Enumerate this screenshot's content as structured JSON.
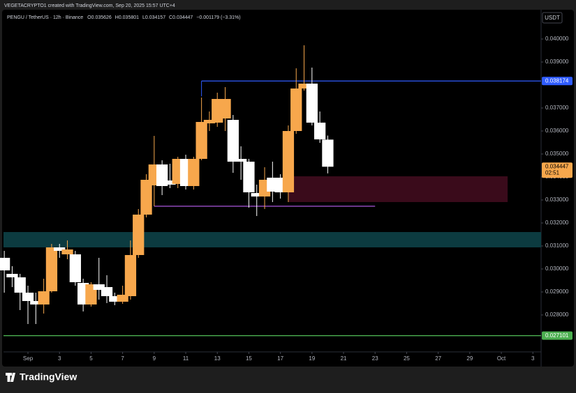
{
  "header": "VEGETACRYPTO1 created with TradingView.com, Sep 20, 2025 15:57 UTC+4",
  "footer": "TradingView",
  "chart_data": {
    "type": "candlestick",
    "symbol": "PENGU / TetherUS · 12h · Binance",
    "ohlc_letters": [
      "O",
      "H",
      "L",
      "C"
    ],
    "change": "−0.001179 (−3.31%)",
    "currency": "USDT",
    "countdown": "02:51",
    "x": [
      -0.5,
      0,
      0.5,
      1,
      1.5,
      2,
      2.5,
      3,
      3.5,
      4,
      4.5,
      5,
      5.5,
      6,
      6.5,
      7,
      7.5,
      8,
      8.5,
      9,
      9.5,
      10,
      10.5,
      11,
      11.5,
      12,
      12.5,
      13,
      13.5,
      14,
      14.5,
      15,
      15.5,
      16,
      16.5,
      17,
      17.5,
      18,
      18.5,
      19,
      19.5,
      20
    ],
    "open": [
      0.030485,
      0.029788,
      0.029636,
      0.02897,
      0.028606,
      0.028455,
      0.02903,
      0.030939,
      0.030636,
      0.030636,
      0.029394,
      0.028455,
      0.029333,
      0.029212,
      0.028818,
      0.028576,
      0.028818,
      0.030606,
      0.032364,
      0.033636,
      0.034545,
      0.033848,
      0.033697,
      0.034788,
      0.033606,
      0.034788,
      0.036333,
      0.036364,
      0.036545,
      0.036485,
      0.034788,
      0.034667,
      0.033303,
      0.033152,
      0.03397,
      0.03397,
      0.033333,
      0.036,
      0.037848,
      0.038061,
      0.036364,
      0.035626
    ],
    "high": [
      0.030788,
      0.030121,
      0.029788,
      0.029273,
      0.02897,
      0.029576,
      0.031091,
      0.031091,
      0.031242,
      0.030788,
      0.029576,
      0.029424,
      0.030485,
      0.029727,
      0.02897,
      0.029273,
      0.031242,
      0.032606,
      0.034121,
      0.035788,
      0.034727,
      0.034576,
      0.034879,
      0.03497,
      0.034879,
      0.037455,
      0.036848,
      0.037667,
      0.037909,
      0.036697,
      0.035333,
      0.034788,
      0.033667,
      0.034424,
      0.034667,
      0.034121,
      0.036242,
      0.038727,
      0.039727,
      0.038758,
      0.036848,
      0.035801
    ],
    "low": [
      0.02897,
      0.029212,
      0.028212,
      0.027606,
      0.027606,
      0.028061,
      0.02897,
      0.030485,
      0.030424,
      0.029273,
      0.028152,
      0.028364,
      0.028667,
      0.028515,
      0.028424,
      0.028485,
      0.028667,
      0.030485,
      0.032242,
      0.032727,
      0.033212,
      0.033515,
      0.033515,
      0.033455,
      0.033455,
      0.034727,
      0.036,
      0.036182,
      0.036,
      0.034182,
      0.033879,
      0.032667,
      0.032303,
      0.032606,
      0.032909,
      0.033061,
      0.032909,
      0.035879,
      0.037758,
      0.036242,
      0.035485,
      0.034157
    ],
    "close": [
      0.029939,
      0.029636,
      0.02897,
      0.028606,
      0.028455,
      0.02903,
      0.030939,
      0.030788,
      0.030848,
      0.029424,
      0.028455,
      0.029333,
      0.029091,
      0.028818,
      0.028576,
      0.028879,
      0.030606,
      0.032364,
      0.033879,
      0.034545,
      0.033606,
      0.033667,
      0.034788,
      0.033606,
      0.034788,
      0.036394,
      0.036485,
      0.037394,
      0.037394,
      0.034667,
      0.034667,
      0.033333,
      0.033152,
      0.033879,
      0.033364,
      0.033333,
      0.036,
      0.037848,
      0.038061,
      0.036364,
      0.035636,
      0.034447
    ],
    "up_color": "#f7a74c",
    "down_color": "#ffffff",
    "xlim": [
      -0.55,
      33.52
    ],
    "xticks": [
      {
        "value": 1,
        "label": "Sep"
      },
      3,
      5,
      7,
      9,
      11,
      13,
      15,
      17,
      19,
      21,
      23,
      25,
      27,
      29,
      {
        "value": 31,
        "label": "Oct"
      },
      {
        "value": 33,
        "label": "3"
      }
    ],
    "ylim": [
      0.026394,
      0.041273
    ],
    "yticks": [
      {
        "value": 0.04,
        "label": "0.040000"
      },
      {
        "value": 0.039,
        "label": "0.039000"
      },
      {
        "value": 0.037,
        "label": "0.037000"
      },
      {
        "value": 0.036,
        "label": "0.036000"
      },
      {
        "value": 0.035,
        "label": "0.035000"
      },
      {
        "value": 0.034,
        "label": "0.034000"
      },
      {
        "value": 0.033,
        "label": "0.033000"
      },
      {
        "value": 0.032,
        "label": "0.032000"
      },
      {
        "value": 0.031,
        "label": "0.031000"
      },
      {
        "value": 0.03,
        "label": "0.030000"
      },
      {
        "value": 0.029,
        "label": "0.029000"
      },
      {
        "value": 0.028,
        "label": "0.028000"
      }
    ],
    "zones": [
      {
        "from": 0.031606,
        "to": 0.030939,
        "color": "#0c3b40"
      },
      {
        "from": 0.03403,
        "to": 0.032909,
        "color": "#3a0b1b",
        "x_start": 17.5,
        "x_end": 31.4
      }
    ],
    "levels": [
      {
        "value": 0.038174,
        "color": "#2f5cff",
        "x_start": 12,
        "axis_label": true
      },
      {
        "value": 0.03273,
        "color": "#9b4fc9",
        "x_start": 9,
        "x_end": 23,
        "axis_label": false
      },
      {
        "value": 0.027101,
        "color": "#4caf50",
        "axis_label": true
      }
    ]
  }
}
